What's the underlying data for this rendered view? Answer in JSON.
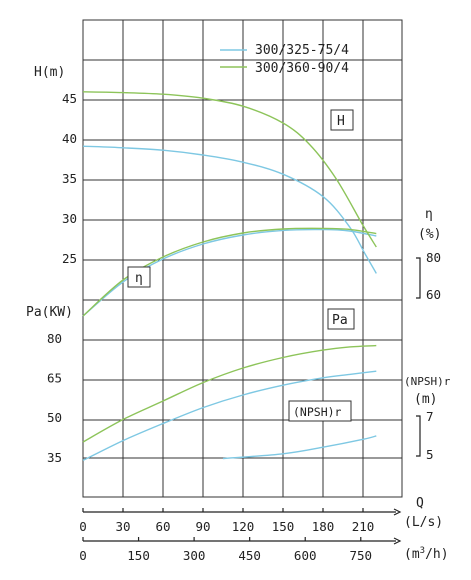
{
  "chart_data": {
    "type": "line",
    "legend": {
      "placement": "top-right",
      "entries": [
        {
          "name": "300/325-75/4",
          "color": "#7ec8e3"
        },
        {
          "name": "300/360-90/4",
          "color": "#8dc45a"
        }
      ]
    },
    "panels": {
      "head": {
        "axis_label": "H(m)",
        "tag": "H",
        "ticks": [
          "45",
          "40",
          "35",
          "30",
          "25"
        ],
        "range": [
          25,
          47.5
        ]
      },
      "efficiency": {
        "axis_label": "η",
        "unit": "(%)",
        "tag": "η",
        "ticks": [
          "80",
          "60"
        ]
      },
      "power": {
        "axis_label": "Pa(KW)",
        "tag": "Pa",
        "ticks": [
          "80",
          "65",
          "50",
          "35"
        ],
        "range": [
          28,
          87.5
        ]
      },
      "npsh": {
        "axis_label": "(NPSH)r",
        "unit": "(m)",
        "tag": "(NPSH)r",
        "ticks": [
          "7",
          "5"
        ]
      }
    },
    "x_axes": {
      "flow_label": "Q",
      "ls": {
        "unit": "(L/s)",
        "ticks": [
          "0",
          "30",
          "60",
          "90",
          "120",
          "150",
          "180",
          "210"
        ],
        "range": [
          0,
          240
        ]
      },
      "m3h": {
        "unit_prefix": "(m",
        "unit_sup": "3",
        "unit_suffix": "/h)",
        "ticks": [
          "0",
          "150",
          "300",
          "450",
          "600",
          "750"
        ]
      }
    },
    "series": [
      {
        "name": "300/325-75/4",
        "color": "#7ec8e3",
        "head": [
          [
            0,
            39.1
          ],
          [
            30,
            38.9
          ],
          [
            60,
            38.6
          ],
          [
            90,
            38.0
          ],
          [
            120,
            37.1
          ],
          [
            150,
            35.6
          ],
          [
            180,
            32.8
          ],
          [
            200,
            29.0
          ],
          [
            212,
            25.5
          ],
          [
            220,
            23.2
          ]
        ],
        "efficiency": [
          [
            0,
            51.0
          ],
          [
            30,
            68.0
          ],
          [
            60,
            79.5
          ],
          [
            90,
            87.0
          ],
          [
            120,
            91.5
          ],
          [
            150,
            93.8
          ],
          [
            180,
            94.2
          ],
          [
            200,
            93.5
          ],
          [
            220,
            91.0
          ]
        ],
        "power": [
          [
            0,
            34.0
          ],
          [
            30,
            41.5
          ],
          [
            60,
            48.0
          ],
          [
            90,
            54.0
          ],
          [
            120,
            58.8
          ],
          [
            150,
            62.5
          ],
          [
            180,
            65.3
          ],
          [
            200,
            66.6
          ],
          [
            220,
            67.8
          ]
        ],
        "npsh": [
          [
            105,
            34.7
          ],
          [
            150,
            36.5
          ],
          [
            180,
            39.0
          ],
          [
            210,
            42.0
          ],
          [
            220,
            43.3
          ]
        ]
      },
      {
        "name": "300/360-90/4",
        "color": "#8dc45a",
        "head": [
          [
            0,
            45.9
          ],
          [
            30,
            45.8
          ],
          [
            60,
            45.6
          ],
          [
            90,
            45.1
          ],
          [
            120,
            44.1
          ],
          [
            150,
            42.0
          ],
          [
            170,
            39.3
          ],
          [
            190,
            35.0
          ],
          [
            210,
            29.2
          ],
          [
            220,
            26.5
          ]
        ],
        "efficiency": [
          [
            0,
            51.0
          ],
          [
            30,
            69.0
          ],
          [
            60,
            80.5
          ],
          [
            90,
            88.0
          ],
          [
            120,
            92.5
          ],
          [
            150,
            94.5
          ],
          [
            180,
            94.8
          ],
          [
            200,
            94.3
          ],
          [
            220,
            92.2
          ]
        ],
        "power": [
          [
            0,
            41.0
          ],
          [
            30,
            49.5
          ],
          [
            60,
            56.5
          ],
          [
            90,
            63.5
          ],
          [
            120,
            69.0
          ],
          [
            150,
            73.0
          ],
          [
            180,
            75.8
          ],
          [
            200,
            77.0
          ],
          [
            220,
            77.5
          ]
        ]
      }
    ]
  }
}
